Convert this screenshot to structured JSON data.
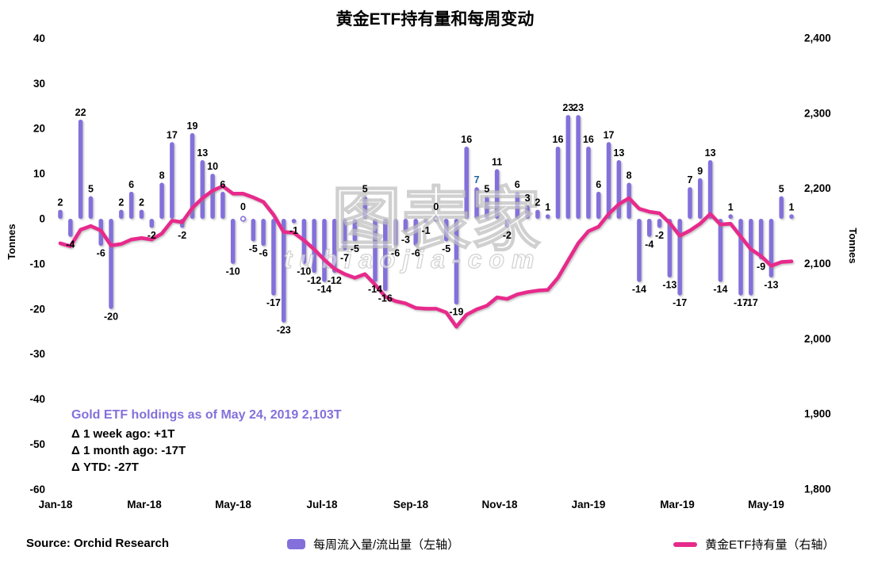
{
  "title": "黄金ETF持有量和每周变动",
  "source": "Source: Orchid Research",
  "annotation": {
    "headline": "Gold ETF holdings as of May 24, 2019 2,103T",
    "headline_color": "#8470DB",
    "lines": [
      "Δ 1 week ago: +1T",
      "Δ 1 month ago: -17T",
      "Δ YTD: -27T"
    ]
  },
  "watermark": {
    "main": "图表家",
    "sub": "tubiaojia-com"
  },
  "legend": [
    {
      "label": "每周流入量/流出量（左轴）",
      "color": "#8470DB",
      "kind": "bar"
    },
    {
      "label": "黄金ETF持有量（右轴）",
      "color": "#E72A8C",
      "kind": "line"
    }
  ],
  "chart_data": {
    "type": "bar+line",
    "title": "黄金ETF持有量和每周变动",
    "x_unit": "week",
    "x_range": [
      "Jan-18",
      "May-19"
    ],
    "x_ticks": [
      "Jan-18",
      "Mar-18",
      "May-18",
      "Jul-18",
      "Sep-18",
      "Nov-18",
      "Jan-19",
      "Mar-19",
      "May-19"
    ],
    "left_axis": {
      "title": "Tonnes",
      "range": [
        -60,
        40
      ],
      "ticks": [
        40,
        30,
        20,
        10,
        0,
        -10,
        -20,
        -30,
        -40,
        -50,
        -60
      ]
    },
    "right_axis": {
      "title": "Tonnes",
      "range": [
        1800,
        2400
      ],
      "ticks": [
        {
          "label": "2,400",
          "value": 2400
        },
        {
          "label": "2,300",
          "value": 2300
        },
        {
          "label": "2,200",
          "value": 2200
        },
        {
          "label": "2,100",
          "value": 2100
        },
        {
          "label": "2,000",
          "value": 2000
        },
        {
          "label": "1,900",
          "value": 1900
        },
        {
          "label": "1,800",
          "value": 1800
        }
      ]
    },
    "series": [
      {
        "name": "每周流入量/流出量（左轴）",
        "type": "bar",
        "axis": "left",
        "color": "#8470DB",
        "values": [
          2,
          -4,
          22,
          5,
          -6,
          -20,
          2,
          6,
          2,
          -2,
          8,
          17,
          -2,
          19,
          13,
          10,
          6,
          -10,
          0,
          -5,
          -6,
          -17,
          -23,
          -1,
          -10,
          -12,
          -14,
          -12,
          -7,
          -5,
          5,
          -14,
          -16,
          -6,
          -3,
          -6,
          -1,
          0,
          -5,
          -19,
          16,
          7,
          5,
          11,
          -2,
          6,
          3,
          2,
          1,
          16,
          23,
          23,
          16,
          6,
          17,
          13,
          8,
          -14,
          -4,
          -2,
          -13,
          -17,
          7,
          9,
          13,
          -14,
          1,
          -17,
          -17,
          -9,
          -13,
          5,
          1
        ]
      },
      {
        "name": "黄金ETF持有量（右轴）",
        "type": "line",
        "axis": "right",
        "color": "#E72A8C",
        "derivation": "cumulative_sum_of_weekly_flows",
        "start_value": 2125,
        "end_value": 2103
      }
    ],
    "data_label_exceptions": [
      {
        "index": 41,
        "color": "#1F639E"
      }
    ],
    "zero_value_marker": "small-circle"
  }
}
